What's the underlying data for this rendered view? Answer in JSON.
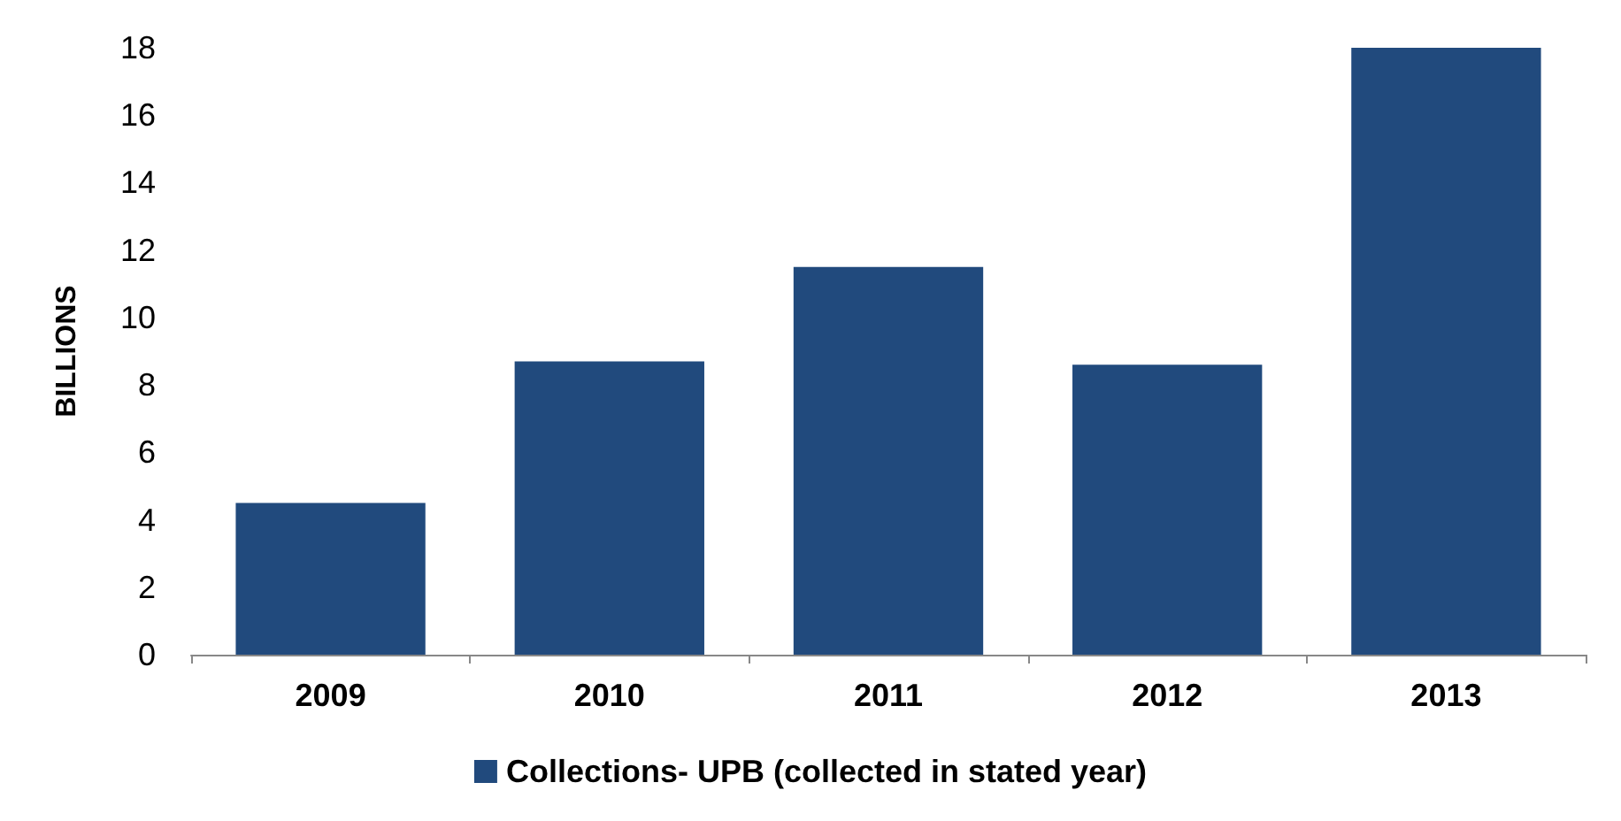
{
  "chart_data": {
    "type": "bar",
    "ylabel": "BILLIONS",
    "categories": [
      "2009",
      "2010",
      "2011",
      "2012",
      "2013"
    ],
    "series": [
      {
        "name": "Collections- UPB (collected in stated year)",
        "color": "#214a7d",
        "values": [
          4.5,
          8.7,
          11.5,
          8.6,
          18.0
        ]
      }
    ],
    "ylim": [
      0,
      18
    ],
    "yticks": [
      0,
      2,
      4,
      6,
      8,
      10,
      12,
      14,
      16,
      18
    ],
    "grid": false,
    "legend": "bottom"
  }
}
